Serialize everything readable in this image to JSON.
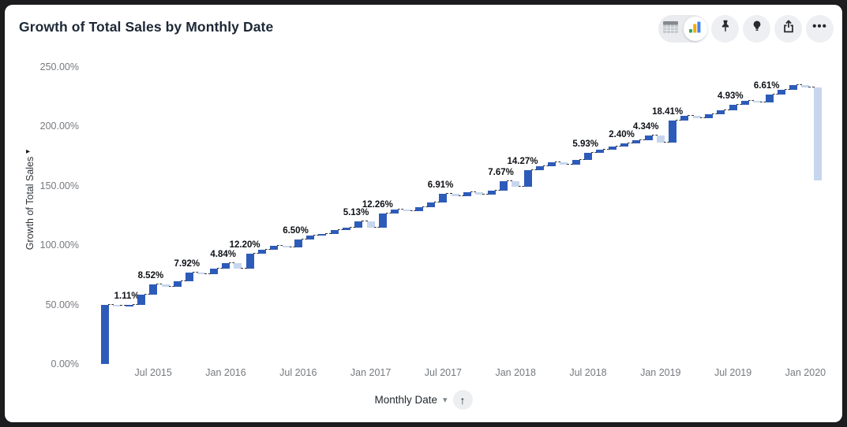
{
  "header": {
    "title": "Growth of Total Sales by Monthly Date"
  },
  "toolbar": {
    "view_toggle": {
      "options": [
        "table-view",
        "chart-view"
      ],
      "selected": "chart-view"
    },
    "more_glyph": "•••"
  },
  "x_axis_control": {
    "label": "Monthly Date",
    "caret_glyph": "▾",
    "sort_glyph": "↑"
  },
  "y_axis_control": {
    "label": "Growth of Total Sales",
    "expand_glyph": "▸"
  },
  "chart_data": {
    "type": "bar",
    "subtype": "waterfall",
    "title": "Growth of Total Sales by Monthly Date",
    "xlabel": "Monthly Date",
    "ylabel": "Growth of Total Sales",
    "ylim": [
      0,
      250
    ],
    "grid": false,
    "legend": false,
    "y_tick_labels": [
      "0.00%",
      "50.00%",
      "100.00%",
      "150.00%",
      "200.00%",
      "250.00%"
    ],
    "y_tick_values": [
      0,
      50,
      100,
      150,
      200,
      250
    ],
    "x_tick_labels": [
      "Jul 2015",
      "Jan 2016",
      "Jul 2016",
      "Jan 2017",
      "Jul 2017",
      "Jan 2018",
      "Jul 2018",
      "Jan 2019",
      "Jul 2019",
      "Jan 2020"
    ],
    "x_tick_bar_indices": [
      4,
      10,
      16,
      22,
      28,
      34,
      40,
      46,
      52,
      58
    ],
    "visible_point_labels": [
      "1.11%",
      "8.52%",
      "7.92%",
      "4.84%",
      "12.20%",
      "6.50%",
      "5.13%",
      "12.26%",
      "6.91%",
      "7.67%",
      "14.27%",
      "5.93%",
      "2.40%",
      "4.34%",
      "18.41%",
      "4.93%",
      "6.61%"
    ],
    "colors": {
      "increase": "#2d5bb9",
      "decrease": "#c7d6ee",
      "connector": "#2f3237"
    },
    "bars": [
      {
        "d": 50.0
      },
      {
        "d": -1.2
      },
      {
        "d": 1.11,
        "label": "1.11%"
      },
      {
        "d": 8.5
      },
      {
        "d": 8.52,
        "label": "8.52%"
      },
      {
        "d": -1.8
      },
      {
        "d": 4.2
      },
      {
        "d": 7.92,
        "label": "7.92%"
      },
      {
        "d": -1.4
      },
      {
        "d": 4.5
      },
      {
        "d": 4.84,
        "label": "4.84%"
      },
      {
        "d": -4.8
      },
      {
        "d": 12.2,
        "label": "12.20%"
      },
      {
        "d": 3.5
      },
      {
        "d": 3.6
      },
      {
        "d": -1.6
      },
      {
        "d": 6.5,
        "label": "6.50%"
      },
      {
        "d": 3.2
      },
      {
        "d": 1.8
      },
      {
        "d": 2.9
      },
      {
        "d": 2.4
      },
      {
        "d": 5.13,
        "label": "5.13%"
      },
      {
        "d": -5.4
      },
      {
        "d": 12.26,
        "label": "12.26%"
      },
      {
        "d": 3.2
      },
      {
        "d": -1.2
      },
      {
        "d": 3.4
      },
      {
        "d": 3.8
      },
      {
        "d": 6.91,
        "label": "6.91%"
      },
      {
        "d": -1.6
      },
      {
        "d": 3.2
      },
      {
        "d": -2.1
      },
      {
        "d": 3.4
      },
      {
        "d": 7.67,
        "label": "7.67%"
      },
      {
        "d": -4.6
      },
      {
        "d": 14.27,
        "label": "14.27%"
      },
      {
        "d": 3.0
      },
      {
        "d": 3.2
      },
      {
        "d": -1.5
      },
      {
        "d": 3.8
      },
      {
        "d": 5.93,
        "label": "5.93%"
      },
      {
        "d": 2.6
      },
      {
        "d": 2.9
      },
      {
        "d": 2.4,
        "label": "2.40%"
      },
      {
        "d": 2.5
      },
      {
        "d": 4.34,
        "label": "4.34%"
      },
      {
        "d": -5.8
      },
      {
        "d": 18.41,
        "label": "18.41%"
      },
      {
        "d": 3.6
      },
      {
        "d": -1.6
      },
      {
        "d": 3.4
      },
      {
        "d": 2.8
      },
      {
        "d": 4.93,
        "label": "4.93%"
      },
      {
        "d": 3.2
      },
      {
        "d": -1.4
      },
      {
        "d": 6.61,
        "label": "6.61%"
      },
      {
        "d": 4.0
      },
      {
        "d": 4.2
      },
      {
        "d": -2.2
      },
      {
        "d": -78.0
      }
    ]
  }
}
